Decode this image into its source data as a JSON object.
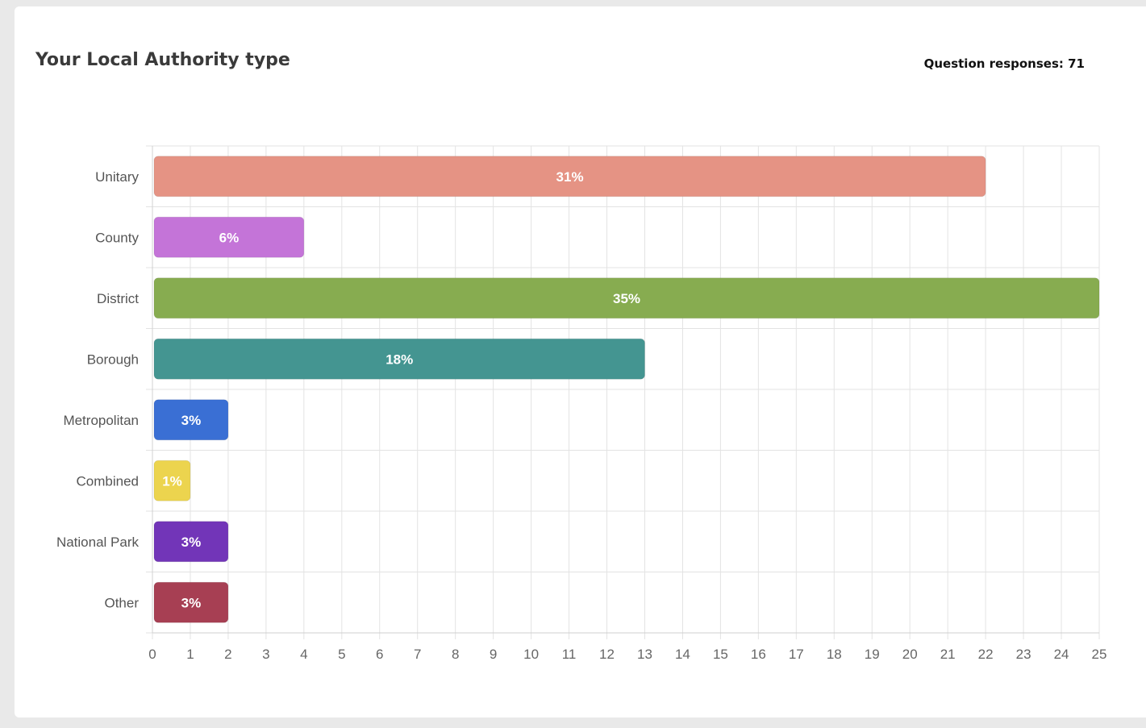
{
  "header": {
    "title": "Your Local Authority type",
    "responses_label": "Question responses: 71"
  },
  "chart_data": {
    "type": "bar",
    "orientation": "horizontal",
    "title": "Your Local Authority type",
    "xlabel": "",
    "ylabel": "",
    "xlim": [
      0,
      25
    ],
    "xticks": [
      0,
      1,
      2,
      3,
      4,
      5,
      6,
      7,
      8,
      9,
      10,
      11,
      12,
      13,
      14,
      15,
      16,
      17,
      18,
      19,
      20,
      21,
      22,
      23,
      24,
      25
    ],
    "grid": true,
    "legend": "none",
    "categories": [
      "Unitary",
      "County",
      "District",
      "Borough",
      "Metropolitan",
      "Combined",
      "National Park",
      "Other"
    ],
    "values": [
      22,
      4,
      25,
      13,
      2,
      1,
      2,
      2
    ],
    "labels": [
      "31%",
      "6%",
      "35%",
      "18%",
      "3%",
      "1%",
      "3%",
      "3%"
    ],
    "colors": [
      "#e59384",
      "#c474d8",
      "#87ac50",
      "#449591",
      "#3a6fd4",
      "#ecd44e",
      "#7235b8",
      "#a73f53"
    ]
  }
}
